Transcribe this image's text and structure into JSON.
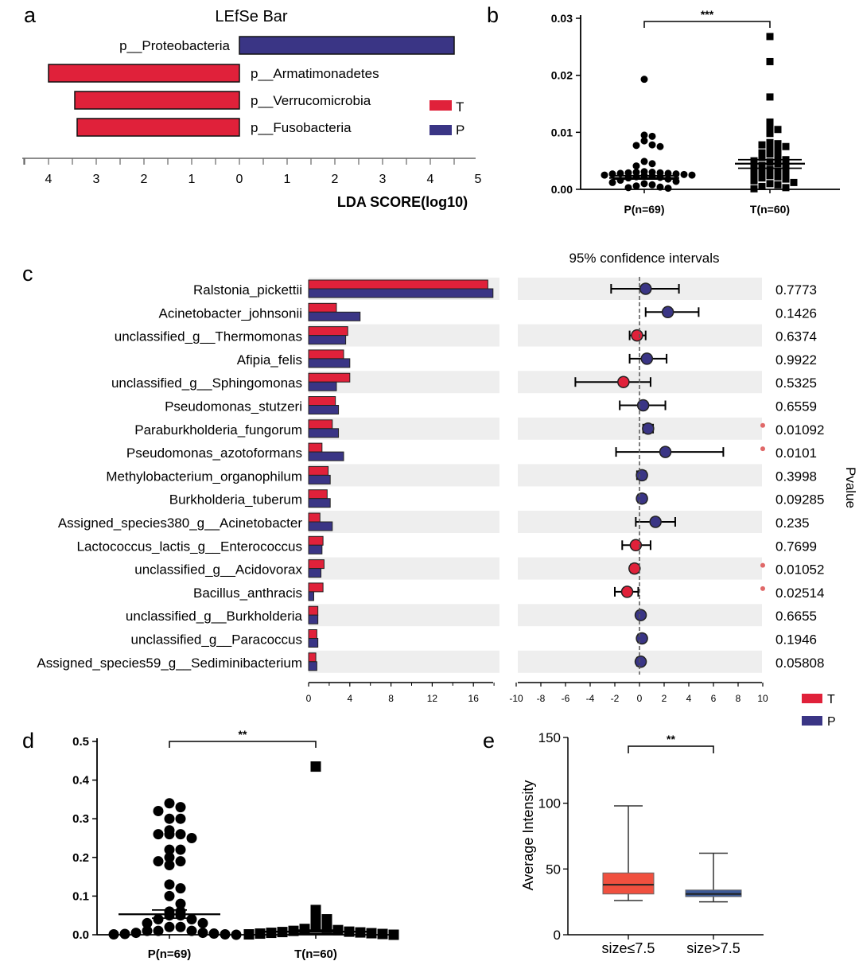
{
  "colors": {
    "T": "#e0213a",
    "P": "#3a3585",
    "text": "#000000",
    "shade": "#eeeeee",
    "sig": "#e06868",
    "box_T": "#f0503f",
    "box_P": "#3d5a98"
  },
  "chart_data": [
    {
      "id": "a",
      "panel_label": "a",
      "type": "bar",
      "orientation": "horizontal",
      "title": "LEfSe Bar",
      "xlabel": "LDA SCORE(log10)",
      "categories": [
        "p__Proteobacteria",
        "p__Armatimonadetes",
        "p__Verrucomicrobia",
        "p__Fusobacteria"
      ],
      "groups": [
        "P",
        "T",
        "T",
        "T"
      ],
      "values": [
        4.5,
        4.0,
        3.45,
        3.4
      ],
      "ticks_left": [
        "4",
        "3",
        "2",
        "1",
        "0"
      ],
      "ticks_right": [
        "1",
        "2",
        "3",
        "4",
        "5"
      ],
      "legend": [
        "T",
        "P"
      ]
    },
    {
      "id": "b",
      "panel_label": "b",
      "type": "scatter",
      "categories": [
        "P(n=69)",
        "T(n=60)"
      ],
      "yticks": [
        "0.00",
        "0.01",
        "0.02",
        "0.03"
      ],
      "ylim": [
        0,
        0.03
      ],
      "significance": "***",
      "means": [
        0.002,
        0.0045
      ],
      "sem_range": [
        [
          0.0018,
          0.0024
        ],
        [
          0.0037,
          0.0052
        ]
      ],
      "points": [
        [
          0.0193,
          0.0095,
          0.0093,
          0.0085,
          0.0078,
          0.0077,
          0.0075,
          0.0049,
          0.0045,
          0.0041,
          0.0031,
          0.003,
          0.003,
          0.0029,
          0.0029,
          0.0028,
          0.0028,
          0.0027,
          0.0027,
          0.0026,
          0.0025,
          0.0025,
          0.0024,
          0.0023,
          0.0022,
          0.0021,
          0.002,
          0.0018,
          0.0016,
          0.0014,
          0.0012,
          0.001,
          0.0008,
          0.0006,
          0.0004,
          0.0003,
          0.0002
        ],
        [
          0.0268,
          0.0224,
          0.0162,
          0.0118,
          0.011,
          0.0105,
          0.0098,
          0.0082,
          0.008,
          0.0078,
          0.0075,
          0.0072,
          0.0068,
          0.0064,
          0.0062,
          0.0058,
          0.0056,
          0.0052,
          0.005,
          0.0048,
          0.0045,
          0.0042,
          0.004,
          0.0038,
          0.0035,
          0.0032,
          0.003,
          0.0028,
          0.0026,
          0.0024,
          0.0022,
          0.002,
          0.0018,
          0.0015,
          0.0012,
          0.001,
          0.0008,
          0.0005,
          0.0003,
          0.0001
        ]
      ]
    },
    {
      "id": "c",
      "panel_label": "c",
      "type": "bar",
      "title": "95% confidence intervals",
      "ylabel_right": "Pvalue",
      "legend": [
        "T",
        "P"
      ],
      "bar_ticks": [
        "0",
        "4",
        "8",
        "12",
        "16"
      ],
      "ci_ticks": [
        "-10",
        "-8",
        "-6",
        "-4",
        "-2",
        "0",
        "2",
        "4",
        "6",
        "8",
        "10"
      ],
      "categories": [
        "Ralstonia_pickettii",
        "Acinetobacter_johnsonii",
        "unclassified_g__Thermomonas",
        "Afipia_felis",
        "unclassified_g__Sphingomonas",
        "Pseudomonas_stutzeri",
        "Paraburkholderia_fungorum",
        "Pseudomonas_azotoformans",
        "Methylobacterium_organophilum",
        "Burkholderia_tuberum",
        "Assigned_species380_g__Acinetobacter",
        "Lactococcus_lactis_g__Enterococcus",
        "unclassified_g__Acidovorax",
        "Bacillus_anthracis",
        "unclassified_g__Burkholderia",
        "unclassified_g__Paracoccus",
        "Assigned_species59_g__Sediminibacterium"
      ],
      "series": [
        {
          "name": "T",
          "values": [
            17.4,
            2.7,
            3.8,
            3.4,
            4.0,
            2.6,
            2.3,
            1.3,
            1.9,
            1.8,
            1.1,
            1.4,
            1.5,
            1.4,
            0.9,
            0.8,
            0.7
          ]
        },
        {
          "name": "P",
          "values": [
            17.9,
            5.0,
            3.6,
            4.0,
            2.7,
            2.9,
            2.9,
            3.4,
            2.1,
            2.1,
            2.3,
            1.3,
            1.2,
            0.5,
            0.9,
            0.9,
            0.8
          ]
        }
      ],
      "ci_center": [
        0.5,
        2.3,
        -0.2,
        0.6,
        -1.3,
        0.3,
        0.7,
        2.1,
        0.2,
        0.2,
        1.3,
        -0.3,
        -0.4,
        -1.0,
        0.1,
        0.2,
        0.1
      ],
      "ci_low": [
        -2.3,
        0.5,
        -0.8,
        -0.8,
        -5.2,
        -1.6,
        0.3,
        -1.9,
        -0.2,
        -0.1,
        -0.3,
        -1.4,
        -0.7,
        -2.0,
        -0.1,
        -0.1,
        -0.2
      ],
      "ci_high": [
        3.2,
        4.8,
        0.5,
        2.2,
        0.9,
        2.1,
        1.1,
        6.8,
        0.5,
        0.5,
        2.9,
        0.9,
        -0.1,
        -0.1,
        0.3,
        0.4,
        0.3
      ],
      "ci_color": [
        "P",
        "P",
        "T",
        "P",
        "T",
        "P",
        "P",
        "P",
        "P",
        "P",
        "P",
        "T",
        "T",
        "T",
        "P",
        "P",
        "P"
      ],
      "pvalues": [
        "0.7773",
        "0.1426",
        "0.6374",
        "0.9922",
        "0.5325",
        "0.6559",
        "0.01092",
        "0.0101",
        "0.3998",
        "0.09285",
        "0.235",
        "0.7699",
        "0.01052",
        "0.02514",
        "0.6655",
        "0.1946",
        "0.05808"
      ],
      "significant": [
        false,
        false,
        false,
        false,
        false,
        false,
        true,
        true,
        false,
        false,
        false,
        false,
        true,
        true,
        false,
        false,
        false
      ]
    },
    {
      "id": "d",
      "panel_label": "d",
      "type": "scatter",
      "categories": [
        "P(n=69)",
        "T(n=60)"
      ],
      "yticks": [
        "0.0",
        "0.1",
        "0.2",
        "0.3",
        "0.4",
        "0.5"
      ],
      "ylim": [
        0,
        0.5
      ],
      "significance": "**",
      "means": [
        0.053,
        0.008
      ],
      "sem_range": [
        [
          0.043,
          0.064
        ],
        [
          0.003,
          0.012
        ]
      ],
      "points": [
        [
          0.34,
          0.33,
          0.32,
          0.3,
          0.3,
          0.27,
          0.26,
          0.26,
          0.26,
          0.25,
          0.22,
          0.22,
          0.2,
          0.19,
          0.19,
          0.18,
          0.13,
          0.12,
          0.1,
          0.08,
          0.06,
          0.06,
          0.05,
          0.05,
          0.04,
          0.04,
          0.03,
          0.03,
          0.02,
          0.02,
          0.01,
          0.01,
          0.01,
          0.005,
          0.005,
          0.003,
          0.002,
          0.001,
          0.001,
          0.0
        ],
        [
          0.435,
          0.064,
          0.045,
          0.04,
          0.02,
          0.018,
          0.015,
          0.012,
          0.01,
          0.008,
          0.007,
          0.006,
          0.005,
          0.004,
          0.003,
          0.002,
          0.001,
          0.0
        ]
      ]
    },
    {
      "id": "e",
      "panel_label": "e",
      "type": "box",
      "ylabel": "Average Intensity",
      "categories": [
        "size≤7.5",
        "size>7.5"
      ],
      "yticks": [
        "0",
        "50",
        "100",
        "150"
      ],
      "ylim": [
        0,
        150
      ],
      "significance": "**",
      "boxes": [
        {
          "name": "size≤7.5",
          "min": 26,
          "q1": 31,
          "median": 38,
          "q3": 47,
          "max": 98
        },
        {
          "name": "size>7.5",
          "min": 25,
          "q1": 29,
          "median": 31,
          "q3": 34,
          "max": 62
        }
      ]
    }
  ]
}
